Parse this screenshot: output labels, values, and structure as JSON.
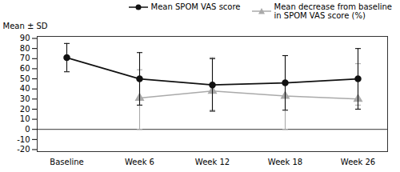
{
  "chart_data": {
    "type": "line",
    "categories": [
      "Baseline",
      "Week 6",
      "Week 12",
      "Week 18",
      "Week 26"
    ],
    "series": [
      {
        "name": "Mean SPOM VAS score",
        "color": "#111111",
        "marker": "circle",
        "values": [
          71,
          50,
          44,
          46,
          50
        ],
        "errors": [
          14,
          26,
          26,
          27,
          30
        ]
      },
      {
        "name": "Mean decrease from baseline\nin SPOM VAS score (%)",
        "color": "#aaaaaa",
        "marker": "triangle",
        "values": [
          null,
          31,
          38,
          33,
          30
        ],
        "errors_upper": [
          null,
          28,
          33,
          40,
          35
        ],
        "errors_lower": [
          null,
          31,
          19,
          33,
          6
        ]
      }
    ],
    "ylabel": "Mean ± SD",
    "ylim": [
      -22,
      92
    ],
    "yticks": [
      -20,
      -10,
      0,
      10,
      20,
      30,
      40,
      50,
      60,
      70,
      80,
      90
    ],
    "hlines": [
      0
    ],
    "grid": false,
    "legend": "upper right"
  }
}
